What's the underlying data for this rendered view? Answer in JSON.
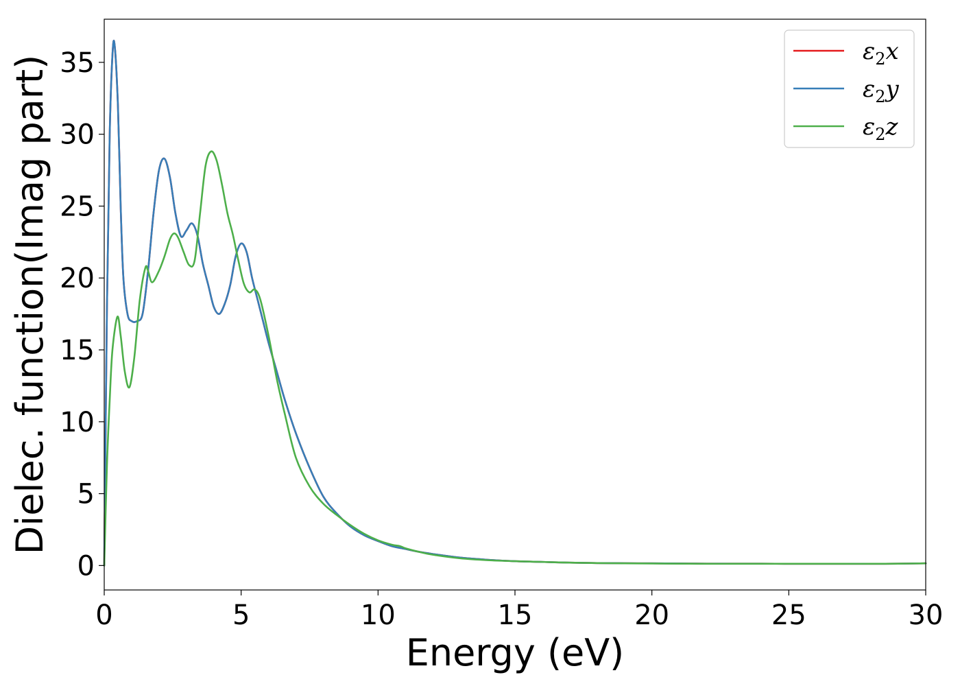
{
  "chart_data": {
    "type": "line",
    "xlabel": "Energy (eV)",
    "ylabel": "Dielec. function(Imag part)",
    "xlim": [
      0,
      30
    ],
    "ylim": [
      -1.7,
      38
    ],
    "xticks": [
      "0",
      "5",
      "10",
      "15",
      "20",
      "25",
      "30"
    ],
    "yticks": [
      "0",
      "5",
      "10",
      "15",
      "20",
      "25",
      "30",
      "35"
    ],
    "grid": false,
    "legend_position": "top-right",
    "series": [
      {
        "name": "ε2x",
        "legend": {
          "base": "ε",
          "sub": "2",
          "var": "x"
        },
        "color": "#e41a1c",
        "x": [
          0,
          0.1,
          0.2,
          0.3,
          0.38,
          0.5,
          0.6,
          0.7,
          0.85,
          1.0,
          1.2,
          1.4,
          1.6,
          1.8,
          2.0,
          2.2,
          2.4,
          2.6,
          2.8,
          3.0,
          3.2,
          3.4,
          3.6,
          3.8,
          4.0,
          4.2,
          4.4,
          4.6,
          4.8,
          5.0,
          5.2,
          5.4,
          5.6,
          5.8,
          6.0,
          6.3,
          6.6,
          7.0,
          7.5,
          8.0,
          8.5,
          9.0,
          9.5,
          10.0,
          10.5,
          11.0,
          11.5,
          12.0,
          13.0,
          14.0,
          15.0,
          16.0,
          17.0,
          18.0,
          19.0,
          20.0,
          21.0,
          22.0,
          23.0,
          24.0,
          25.0,
          26.0,
          27.0,
          28.0,
          29.0,
          30.0
        ],
        "y": [
          0,
          18,
          30,
          35.5,
          36.2,
          32,
          25,
          20,
          17.5,
          17.0,
          17.0,
          17.5,
          20.5,
          24.5,
          27.5,
          28.3,
          27.0,
          24.5,
          22.9,
          23.3,
          23.8,
          23.0,
          21.0,
          19.5,
          18.0,
          17.5,
          18.2,
          19.5,
          21.5,
          22.4,
          21.8,
          20.0,
          18.5,
          17.0,
          15.5,
          13.5,
          11.5,
          9.2,
          6.8,
          4.8,
          3.6,
          2.7,
          2.1,
          1.7,
          1.35,
          1.15,
          0.95,
          0.8,
          0.55,
          0.4,
          0.3,
          0.25,
          0.2,
          0.17,
          0.16,
          0.15,
          0.14,
          0.13,
          0.13,
          0.13,
          0.12,
          0.12,
          0.12,
          0.12,
          0.13,
          0.15
        ]
      },
      {
        "name": "ε2y",
        "legend": {
          "base": "ε",
          "sub": "2",
          "var": "y"
        },
        "color": "#377eb8",
        "x": [
          0,
          0.1,
          0.2,
          0.3,
          0.38,
          0.5,
          0.6,
          0.7,
          0.85,
          1.0,
          1.2,
          1.4,
          1.6,
          1.8,
          2.0,
          2.2,
          2.4,
          2.6,
          2.8,
          3.0,
          3.2,
          3.4,
          3.6,
          3.8,
          4.0,
          4.2,
          4.4,
          4.6,
          4.8,
          5.0,
          5.2,
          5.4,
          5.6,
          5.8,
          6.0,
          6.3,
          6.6,
          7.0,
          7.5,
          8.0,
          8.5,
          9.0,
          9.5,
          10.0,
          10.5,
          11.0,
          11.5,
          12.0,
          13.0,
          14.0,
          15.0,
          16.0,
          17.0,
          18.0,
          19.0,
          20.0,
          21.0,
          22.0,
          23.0,
          24.0,
          25.0,
          26.0,
          27.0,
          28.0,
          29.0,
          30.0
        ],
        "y": [
          0,
          18,
          30,
          35.5,
          36.2,
          32,
          25,
          20,
          17.5,
          17.0,
          17.0,
          17.5,
          20.5,
          24.5,
          27.5,
          28.3,
          27.0,
          24.5,
          22.9,
          23.3,
          23.8,
          23.0,
          21.0,
          19.5,
          18.0,
          17.5,
          18.2,
          19.5,
          21.5,
          22.4,
          21.8,
          20.0,
          18.5,
          17.0,
          15.5,
          13.5,
          11.5,
          9.2,
          6.8,
          4.8,
          3.6,
          2.7,
          2.1,
          1.7,
          1.35,
          1.15,
          0.95,
          0.8,
          0.55,
          0.4,
          0.3,
          0.25,
          0.2,
          0.17,
          0.16,
          0.15,
          0.14,
          0.13,
          0.13,
          0.13,
          0.12,
          0.12,
          0.12,
          0.12,
          0.13,
          0.15
        ]
      },
      {
        "name": "ε2z",
        "legend": {
          "base": "ε",
          "sub": "2",
          "var": "z"
        },
        "color": "#4daf4a",
        "x": [
          0,
          0.1,
          0.2,
          0.3,
          0.48,
          0.6,
          0.75,
          0.92,
          1.1,
          1.3,
          1.5,
          1.6,
          1.75,
          2.0,
          2.2,
          2.4,
          2.55,
          2.7,
          2.9,
          3.1,
          3.3,
          3.5,
          3.7,
          3.9,
          4.1,
          4.3,
          4.5,
          4.7,
          4.9,
          5.1,
          5.3,
          5.5,
          5.7,
          6.0,
          6.3,
          6.6,
          7.0,
          7.5,
          8.0,
          8.5,
          9.0,
          9.5,
          10.0,
          10.5,
          10.8,
          11.0,
          11.5,
          12.0,
          13.0,
          14.0,
          15.0,
          16.0,
          17.0,
          18.0,
          19.0,
          20.0,
          21.0,
          22.0,
          23.0,
          24.0,
          25.0,
          26.0,
          27.0,
          28.0,
          29.0,
          30.0
        ],
        "y": [
          0,
          7,
          11.5,
          15,
          17.3,
          16,
          13.5,
          12.4,
          14.5,
          18.5,
          20.7,
          20.5,
          19.7,
          20.5,
          21.5,
          22.7,
          23.1,
          22.8,
          21.8,
          20.9,
          21.2,
          24.5,
          27.8,
          28.8,
          28.2,
          26.5,
          24.5,
          23.0,
          21.2,
          19.6,
          19.0,
          19.2,
          18.5,
          16.0,
          13.0,
          10.5,
          7.5,
          5.5,
          4.3,
          3.5,
          2.8,
          2.2,
          1.75,
          1.45,
          1.35,
          1.2,
          0.95,
          0.75,
          0.5,
          0.37,
          0.3,
          0.25,
          0.2,
          0.17,
          0.15,
          0.14,
          0.13,
          0.12,
          0.12,
          0.12,
          0.12,
          0.12,
          0.12,
          0.12,
          0.13,
          0.15
        ]
      }
    ]
  }
}
